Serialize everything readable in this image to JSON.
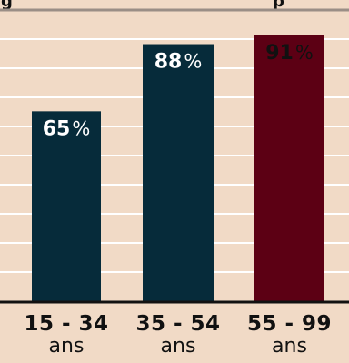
{
  "header": {
    "left_text": "g",
    "right_text": "p"
  },
  "chart_data": {
    "type": "bar",
    "categories": [
      {
        "range": "15 - 34",
        "unit": "ans"
      },
      {
        "range": "35 - 54",
        "unit": "ans"
      },
      {
        "range": "55 - 99",
        "unit": "ans"
      }
    ],
    "values": [
      65,
      88,
      91
    ],
    "value_labels": [
      "65",
      "88",
      "91"
    ],
    "value_suffix": "%",
    "ylim": [
      0,
      100
    ],
    "grid": true,
    "colors": {
      "bars": [
        "#062b3a",
        "#062b3a",
        "#5c0014"
      ],
      "background": "#f1dac6",
      "grid": "#ffffff",
      "axis": "#111111",
      "top_rule": "#9a8e86",
      "label_light": "#ffffff",
      "label_dark": "#111111"
    }
  }
}
